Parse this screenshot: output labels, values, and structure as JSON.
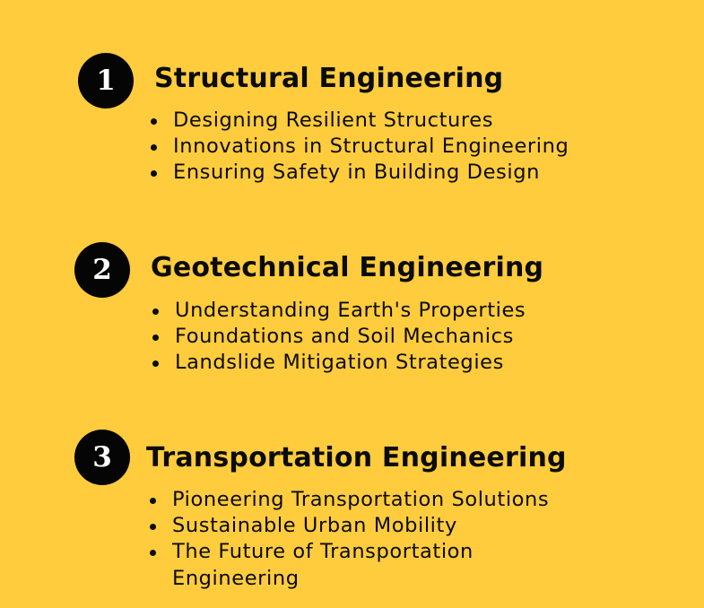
{
  "sections": [
    {
      "number": "1",
      "title": "Structural Engineering",
      "items": [
        "Designing Resilient Structures",
        "Innovations in Structural Engineering",
        "Ensuring Safety in Building Design"
      ]
    },
    {
      "number": "2",
      "title": "Geotechnical Engineering",
      "items": [
        "Understanding Earth's Properties",
        "Foundations and Soil Mechanics",
        "Landslide Mitigation Strategies"
      ]
    },
    {
      "number": "3",
      "title": "Transportation Engineering",
      "items": [
        "Pioneering Transportation Solutions",
        "Sustainable Urban Mobility",
        "The Future of Transportation Engineering"
      ]
    }
  ],
  "colors": {
    "background": "#FFCC3D",
    "badge": "#050505",
    "text": "#0b0b0b"
  }
}
